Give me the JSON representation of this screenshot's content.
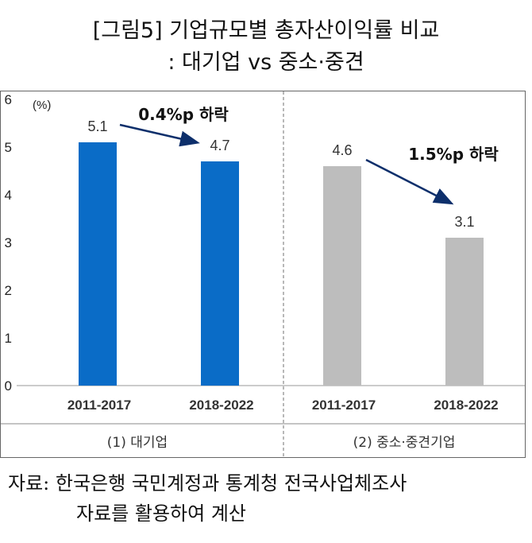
{
  "title_line1": "[그림5] 기업규모별 총자산이익률 비교",
  "title_line2": ": 대기업 vs 중소·중견",
  "source_line1": "자료: 한국은행 국민계정과 통계청 전국사업체조사",
  "source_line2": "자료를 활용하여 계산",
  "chart_data": {
    "type": "bar",
    "ylabel": "(%)",
    "ylim": [
      0,
      6
    ],
    "yticks": [
      0,
      1,
      2,
      3,
      4,
      5,
      6
    ],
    "grid": false,
    "panels": [
      {
        "label": "(1) 대기업",
        "categories": [
          "2011-2017",
          "2018-2022"
        ],
        "values": [
          5.1,
          4.7
        ],
        "value_labels": [
          "5.1",
          "4.7"
        ],
        "color": "#0a6cc7",
        "annotation": "0.4%p 하락"
      },
      {
        "label": "(2) 중소·중견기업",
        "categories": [
          "2011-2017",
          "2018-2022"
        ],
        "values": [
          4.6,
          3.1
        ],
        "value_labels": [
          "4.6",
          "3.1"
        ],
        "color": "#bdbdbd",
        "annotation": "1.5%p 하락"
      }
    ],
    "arrow_color": "#0d2f6b"
  }
}
